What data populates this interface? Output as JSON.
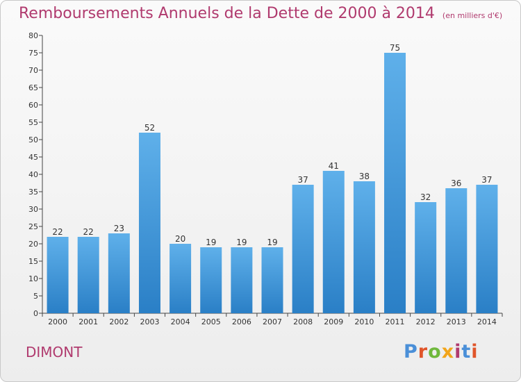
{
  "header": {
    "title": "Remboursements Annuels de la Dette de 2000 à 2014",
    "subtitle": "(en milliers d'€)"
  },
  "commune": "DIMONT",
  "logo": {
    "text": "Proxiti",
    "colors": [
      "#4a8fd8",
      "#e0552a",
      "#6fb83c",
      "#f2a51a",
      "#b03a6e",
      "#4a8fd8",
      "#e0552a"
    ]
  },
  "chart_data": {
    "type": "bar",
    "title": "Remboursements Annuels de la Dette de 2000 à 2014",
    "categories": [
      "2000",
      "2001",
      "2002",
      "2003",
      "2004",
      "2005",
      "2006",
      "2007",
      "2008",
      "2009",
      "2010",
      "2011",
      "2012",
      "2013",
      "2014"
    ],
    "values": [
      22,
      22,
      23,
      52,
      20,
      19,
      19,
      19,
      37,
      41,
      38,
      75,
      32,
      36,
      37
    ],
    "ylim": [
      0,
      80
    ],
    "ytick_step": 5,
    "grid": false,
    "bar_color": "#4aa0e0",
    "bar_color_dark": "#2a7fc6"
  }
}
